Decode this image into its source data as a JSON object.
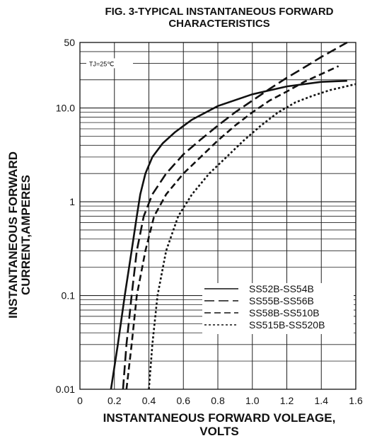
{
  "chart_data": {
    "type": "line",
    "title": "FIG. 3-TYPICAL INSTANTANEOUS FORWARD",
    "subtitle": "CHARACTERISTICS",
    "xlabel": "INSTANTANEOUS FORWARD VOLEAGE,",
    "xlabel_line2": "VOLTS",
    "ylabel": "INSTANTANEOUS FORWARD",
    "ylabel_line2": "CURRENT,AMPERES",
    "xlim": [
      0,
      1.6
    ],
    "ylim": [
      0.01,
      50
    ],
    "y_scale": "log",
    "grid": true,
    "x_ticks": [
      0,
      0.2,
      0.4,
      0.6,
      0.8,
      1.0,
      1.2,
      1.4,
      1.6
    ],
    "x_tick_labels": [
      "0",
      "0.2",
      "0.4",
      "0.6",
      "0.8",
      "1.0",
      "1.2",
      "1.4",
      "1.6"
    ],
    "y_ticks": [
      0.01,
      0.1,
      1,
      10,
      50
    ],
    "y_tick_labels": [
      "0.01",
      "0.1",
      "1",
      "10.0",
      "50"
    ],
    "annotation": "TJ=25℃",
    "legend_position": "bottom-right",
    "series": [
      {
        "name": "SS52B-SS54B",
        "dash": "solid",
        "x": [
          0.18,
          0.22,
          0.26,
          0.3,
          0.33,
          0.35,
          0.38,
          0.42,
          0.48,
          0.55,
          0.65,
          0.8,
          1.0,
          1.2,
          1.4,
          1.55
        ],
        "y": [
          0.01,
          0.03,
          0.1,
          0.3,
          0.7,
          1.2,
          2.0,
          3.0,
          4.2,
          5.5,
          7.5,
          10.5,
          14.0,
          17.0,
          19.0,
          19.5
        ]
      },
      {
        "name": "SS55B-SS56B",
        "dash": "long",
        "x": [
          0.25,
          0.27,
          0.3,
          0.33,
          0.37,
          0.42,
          0.5,
          0.6,
          0.7,
          0.8,
          0.9,
          1.0,
          1.1,
          1.2,
          1.3,
          1.4,
          1.55
        ],
        "y": [
          0.01,
          0.03,
          0.1,
          0.3,
          0.7,
          1.2,
          2.0,
          3.2,
          4.6,
          6.5,
          9.0,
          12.0,
          16.0,
          21.0,
          27.0,
          35.0,
          50.0
        ]
      },
      {
        "name": "SS58B-SS510B",
        "dash": "medium",
        "x": [
          0.27,
          0.3,
          0.33,
          0.38,
          0.43,
          0.5,
          0.6,
          0.7,
          0.8,
          0.9,
          1.0,
          1.1,
          1.2,
          1.3,
          1.4,
          1.5
        ],
        "y": [
          0.01,
          0.03,
          0.1,
          0.3,
          0.7,
          1.2,
          2.0,
          3.0,
          4.5,
          6.5,
          9.0,
          12.0,
          15.0,
          19.0,
          23.0,
          28.0
        ]
      },
      {
        "name": "SS515B-SS520B",
        "dash": "dotted",
        "x": [
          0.4,
          0.42,
          0.45,
          0.5,
          0.57,
          0.65,
          0.75,
          0.85,
          0.95,
          1.05,
          1.15,
          1.25,
          1.35,
          1.45,
          1.6
        ],
        "y": [
          0.01,
          0.03,
          0.1,
          0.3,
          0.7,
          1.2,
          2.0,
          3.0,
          4.5,
          6.5,
          9.0,
          11.5,
          13.5,
          15.5,
          18.0
        ]
      }
    ]
  }
}
